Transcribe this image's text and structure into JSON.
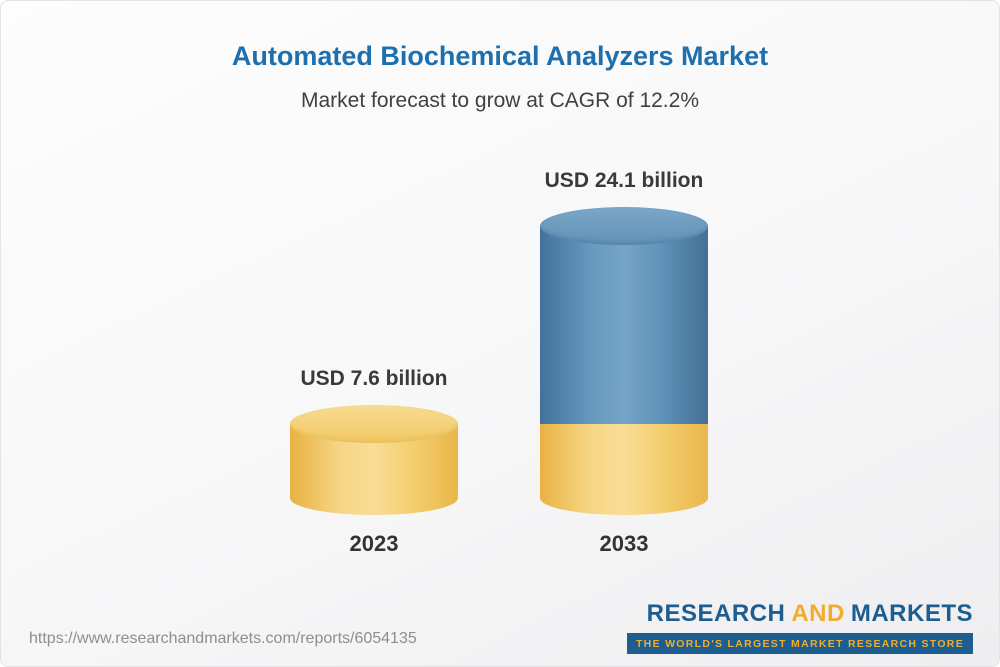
{
  "header": {
    "title": "Automated Biochemical Analyzers Market",
    "subtitle": "Market forecast to grow at CAGR of 12.2%"
  },
  "chart_data": {
    "type": "bar",
    "variant": "3d-cylinder",
    "categories": [
      "2023",
      "2033"
    ],
    "series": [
      {
        "name": "Market value (USD billion)",
        "values": [
          7.6,
          24.1
        ]
      }
    ],
    "value_labels": [
      "USD 7.6 billion",
      "USD 24.1 billion"
    ],
    "unit": "USD billion",
    "cagr_percent": 12.2,
    "grid": false,
    "legend": "none",
    "bar_colors": [
      {
        "body": "#f2c863"
      },
      {
        "growth_segment": "#5f93b9",
        "base_segment": "#f2c863"
      }
    ]
  },
  "footer": {
    "url": "https://www.researchandmarkets.com/reports/6054135",
    "logo_research": "RESEARCH",
    "logo_and": "AND",
    "logo_markets": "MARKETS",
    "tagline": "THE WORLD'S LARGEST MARKET RESEARCH STORE"
  },
  "colors": {
    "title": "#1e6fad",
    "subtitle": "#404040",
    "label": "#3a3a3a",
    "logo_blue": "#1d5d90",
    "logo_yellow": "#f0ad2d",
    "url_gray": "#8e8e8e"
  }
}
